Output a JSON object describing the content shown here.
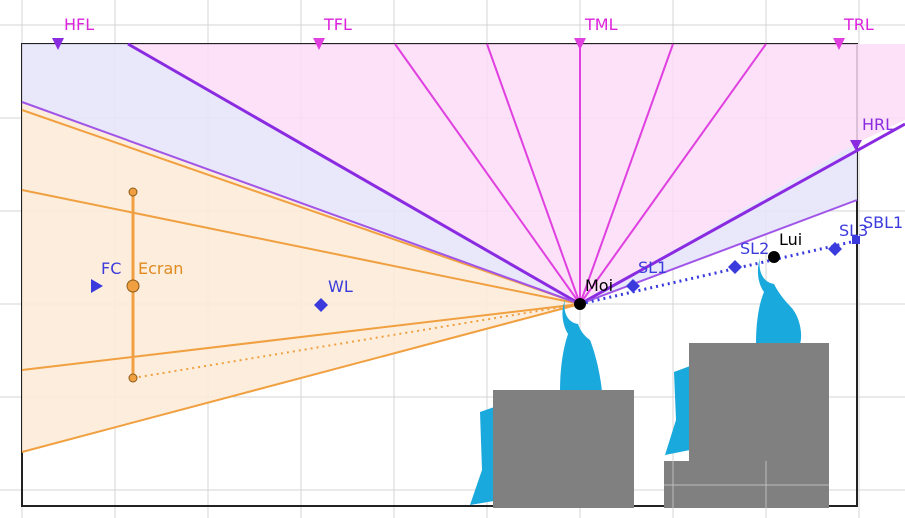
{
  "colors": {
    "magenta": "#dd22dd",
    "purple": "#8a2be2",
    "blue": "#3b3bdd",
    "orange": "#f0a040",
    "skin": "#1aa9dd",
    "seat": "#808080",
    "grid": "#d4d4d4",
    "black": "#000000"
  },
  "labels": {
    "hfl": "HFL",
    "tfl": "TFL",
    "tml": "TML",
    "trl": "TRL",
    "hrl": "HRL",
    "sbl": "SBL1",
    "sl3": "SL3",
    "sl2": "SL2",
    "sl1": "SL1",
    "lui": "Lui",
    "moi": "Moi",
    "wl": "WL",
    "fc": "FC",
    "ecran": "Ecran"
  }
}
